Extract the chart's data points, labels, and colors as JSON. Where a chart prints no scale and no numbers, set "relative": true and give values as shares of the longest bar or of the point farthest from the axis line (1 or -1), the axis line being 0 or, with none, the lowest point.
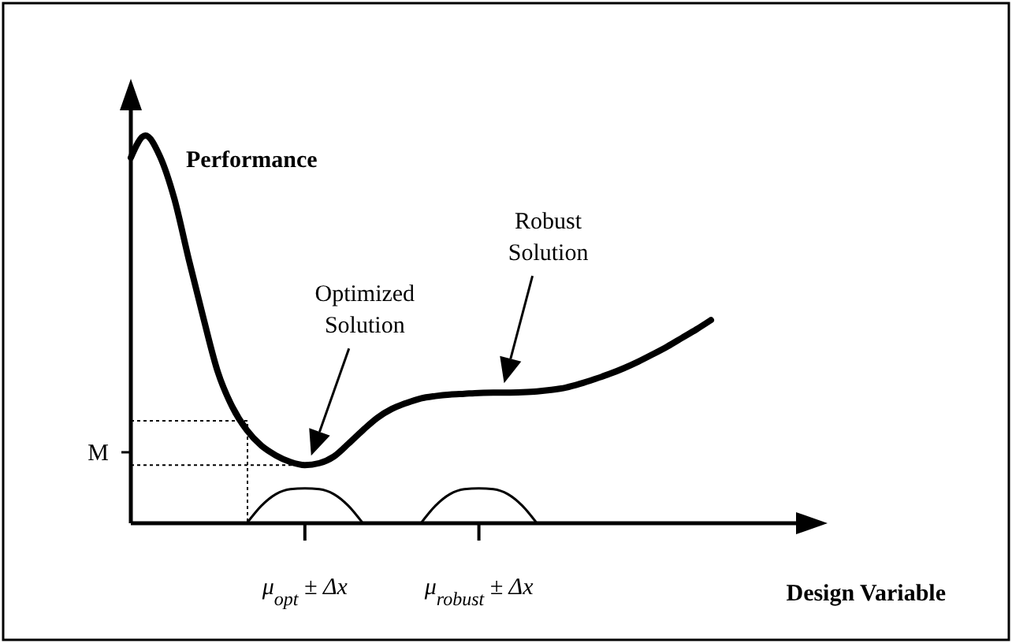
{
  "chart_data": {
    "type": "line",
    "relative": true,
    "xlabel": "Design Variable",
    "ylabel": "Performance",
    "categories": [
      null,
      null,
      null,
      null,
      null,
      null,
      null,
      null,
      null,
      null,
      null,
      null,
      "μ$_{opt}$ ± Δx",
      null,
      null,
      null,
      null,
      null,
      null,
      null,
      null,
      null,
      null,
      null,
      "μ$_{robust}$ ± Δx",
      null,
      null,
      null,
      null,
      null,
      null,
      null,
      null,
      null,
      null,
      null,
      null,
      null,
      null,
      null,
      null
    ],
    "series": [
      {
        "color": "#000000",
        "values": [
          0.943,
          1,
          0.947,
          0.837,
          0.68,
          0.53,
          0.39,
          0.3,
          0.24,
          0.2,
          0.175,
          0.158,
          0.15,
          0.155,
          0.172,
          0.205,
          0.24,
          0.272,
          0.295,
          0.31,
          0.322,
          0.328,
          0.332,
          0.334,
          0.336,
          0.337,
          0.337,
          0.338,
          0.34,
          0.344,
          0.35,
          0.36,
          0.372,
          0.385,
          0.4,
          0.417,
          0.436,
          0.456,
          0.478,
          0.5,
          0.524
        ]
      },
      {
        "color": "#000000",
        "values": [
          null,
          null,
          null,
          null,
          null,
          null,
          null,
          null,
          0,
          0.045,
          0.075,
          0.088,
          0.09,
          0.088,
          0.075,
          0.045,
          0,
          null,
          null,
          null,
          null,
          null,
          null,
          null,
          null,
          null,
          null,
          null,
          null,
          null,
          null,
          null,
          null,
          null,
          null,
          null,
          null,
          null,
          null,
          null,
          null
        ]
      },
      {
        "color": "#000000",
        "values": [
          null,
          null,
          null,
          null,
          null,
          null,
          null,
          null,
          null,
          null,
          null,
          null,
          null,
          null,
          null,
          null,
          null,
          null,
          null,
          null,
          0,
          0.045,
          0.075,
          0.088,
          0.09,
          0.088,
          0.075,
          0.045,
          0,
          null,
          null,
          null,
          null,
          null,
          null,
          null,
          null,
          null,
          null,
          null,
          null
        ]
      }
    ],
    "annotations": [
      "Optimized Solution",
      "Robust Solution",
      "M"
    ]
  }
}
